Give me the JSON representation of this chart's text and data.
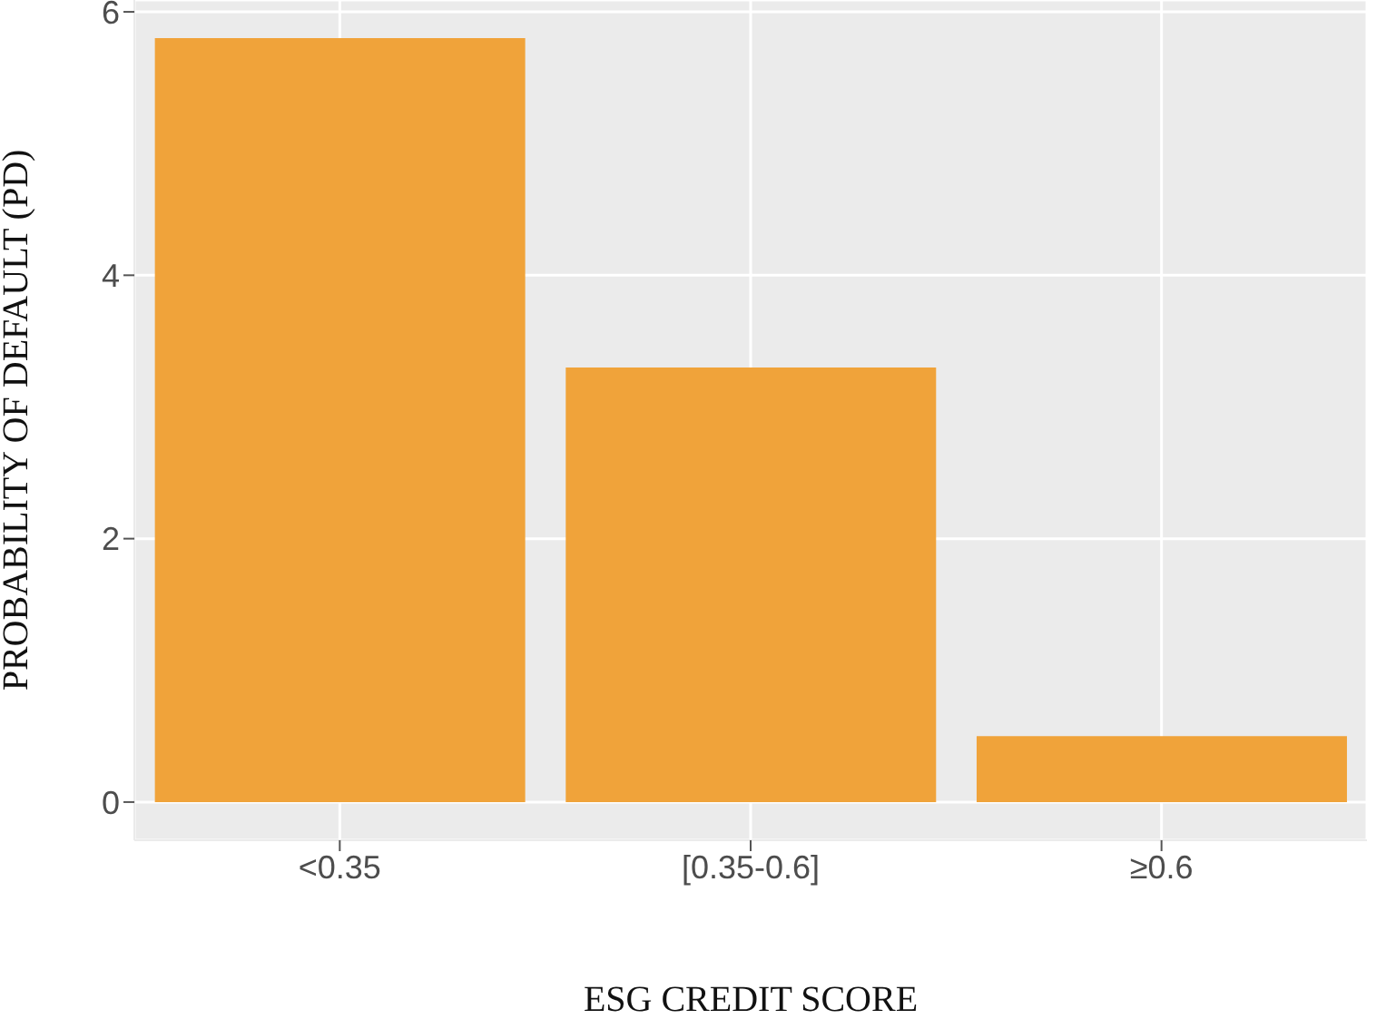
{
  "chart_data": {
    "type": "bar",
    "xlabel": "ESG CREDIT SCORE",
    "ylabel": "PROBABILITY OF DEFAULT (PD)",
    "categories": [
      "<0.35",
      "[0.35-0.6]",
      "≥0.6"
    ],
    "values": [
      5.8,
      3.3,
      0.5
    ],
    "color": "#f0a33a",
    "ylim": [
      -0.29,
      6.09
    ],
    "yticks": [
      0,
      2,
      4,
      6
    ],
    "grid": true
  }
}
